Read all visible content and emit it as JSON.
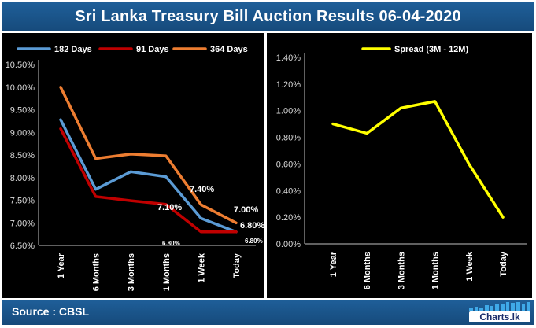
{
  "title": "Sri Lanka Treasury Bill Auction Results  06-04-2020",
  "source": "Source : CBSL",
  "logo_text": "Charts.lk",
  "chart_data": [
    {
      "type": "line",
      "categories": [
        "1 Year",
        "6 Months",
        "3 Months",
        "1 Months",
        "1 Week",
        "Today"
      ],
      "ylim": [
        6.5,
        10.5
      ],
      "yticks": [
        "6.50%",
        "7.00%",
        "7.50%",
        "8.00%",
        "8.50%",
        "9.00%",
        "9.50%",
        "10.00%",
        "10.50%"
      ],
      "series": [
        {
          "name": "182 Days",
          "color": "#5b9bd5",
          "values": [
            9.28,
            7.74,
            8.13,
            8.02,
            7.1,
            6.8
          ]
        },
        {
          "name": "91 Days",
          "color": "#c00000",
          "values": [
            9.08,
            7.58,
            7.49,
            7.41,
            6.8,
            6.8
          ]
        },
        {
          "name": "364 Days",
          "color": "#ed7d31",
          "values": [
            10.0,
            8.42,
            8.52,
            8.48,
            7.4,
            7.0
          ]
        }
      ],
      "annotations": [
        {
          "text": "7.40%",
          "big": true
        },
        {
          "text": "7.00%",
          "big": true
        },
        {
          "text": "6.80%",
          "big": true
        },
        {
          "text": "7.10%",
          "big": true
        },
        {
          "text": "6.80%",
          "big": false
        },
        {
          "text": "6.80%",
          "big": false
        }
      ]
    },
    {
      "type": "line",
      "categories": [
        "1 Year",
        "6 Months",
        "3 Months",
        "1 Months",
        "1 Week",
        "Today"
      ],
      "ylim": [
        0,
        1.4
      ],
      "yticks": [
        "0.00%",
        "0.20%",
        "0.40%",
        "0.60%",
        "0.80%",
        "1.00%",
        "1.20%",
        "1.40%"
      ],
      "series": [
        {
          "name": "Spread (3M - 12M)",
          "color": "#ffff00",
          "values": [
            0.9,
            0.83,
            1.02,
            1.07,
            0.6,
            0.2
          ]
        }
      ]
    }
  ]
}
